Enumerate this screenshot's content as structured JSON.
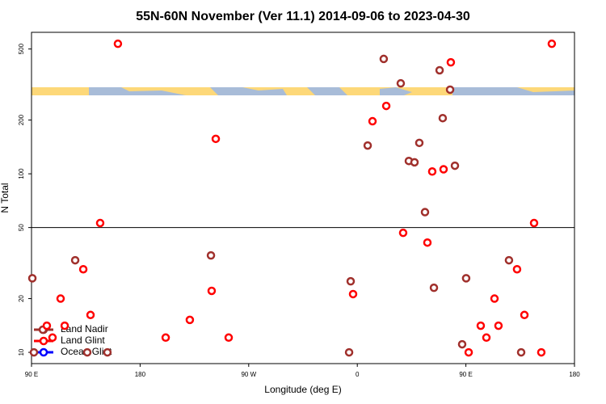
{
  "chart_data": {
    "type": "scatter",
    "title": "55N-60N November (Ver 11.1)   2014-09-06 to 2023-04-30",
    "x_label": "Longitude (deg E)",
    "y_label": "N Total",
    "xlim": [
      90,
      540
    ],
    "ylim": [
      8.65,
      620
    ],
    "log_y": true,
    "xticks": [
      {
        "value": 90,
        "label": "90 E"
      },
      {
        "value": 180,
        "label": "180"
      },
      {
        "value": 270,
        "label": "90 W"
      },
      {
        "value": 360,
        "label": "0"
      },
      {
        "value": 450,
        "label": "90 E"
      },
      {
        "value": 540,
        "label": "180"
      }
    ],
    "yticks": [
      10,
      20,
      50,
      100,
      200,
      500
    ],
    "reference_line": 50,
    "legend": "bottom left",
    "series": [
      {
        "name": "Land Nadir",
        "color": "#a0302c",
        "x": [
          381.9,
          396,
          428.2,
          436.9,
          430.8,
          411.4,
          368.6,
          402.7,
          407.4,
          440.9,
          416.1,
          126.2,
          238.7,
          354.5,
          423.5,
          450.2,
          485.7,
          90.7,
          99.4,
          136.2,
          152.9,
          353.2,
          446.9,
          495.8,
          92
        ],
        "values": [
          440,
          321,
          380,
          296,
          205,
          149,
          144,
          118,
          116,
          111,
          61,
          32.8,
          34.9,
          25,
          23,
          26,
          32.8,
          26,
          13.4,
          10,
          10,
          10,
          11.1,
          10,
          10
        ]
      },
      {
        "name": "Land Glint",
        "color": "#ff0000",
        "x": [
          161.6,
          521.2,
          437.5,
          384,
          372.6,
          242.7,
          422.1,
          431.5,
          146.9,
          506.5,
          398,
          418.1,
          132.9,
          492.4,
          239.3,
          356.5,
          114.1,
          473.7,
          138.9,
          498.5,
          221.2,
          102.7,
          117.5,
          462.3,
          477,
          107.4,
          201.2,
          253.4,
          467,
          452.3,
          512.5
        ],
        "values": [
          535,
          535,
          421,
          240,
          197,
          157,
          103,
          106,
          53,
          53,
          46.7,
          41.2,
          29.2,
          29.2,
          22.1,
          21.2,
          20,
          20,
          16.2,
          16.2,
          15.2,
          14.1,
          14.1,
          14.1,
          14.1,
          12.1,
          12.1,
          12.1,
          12.1,
          10,
          10
        ]
      },
      {
        "name": "Ocean Glint",
        "color": "#0000ff",
        "x": [],
        "values": []
      }
    ]
  }
}
